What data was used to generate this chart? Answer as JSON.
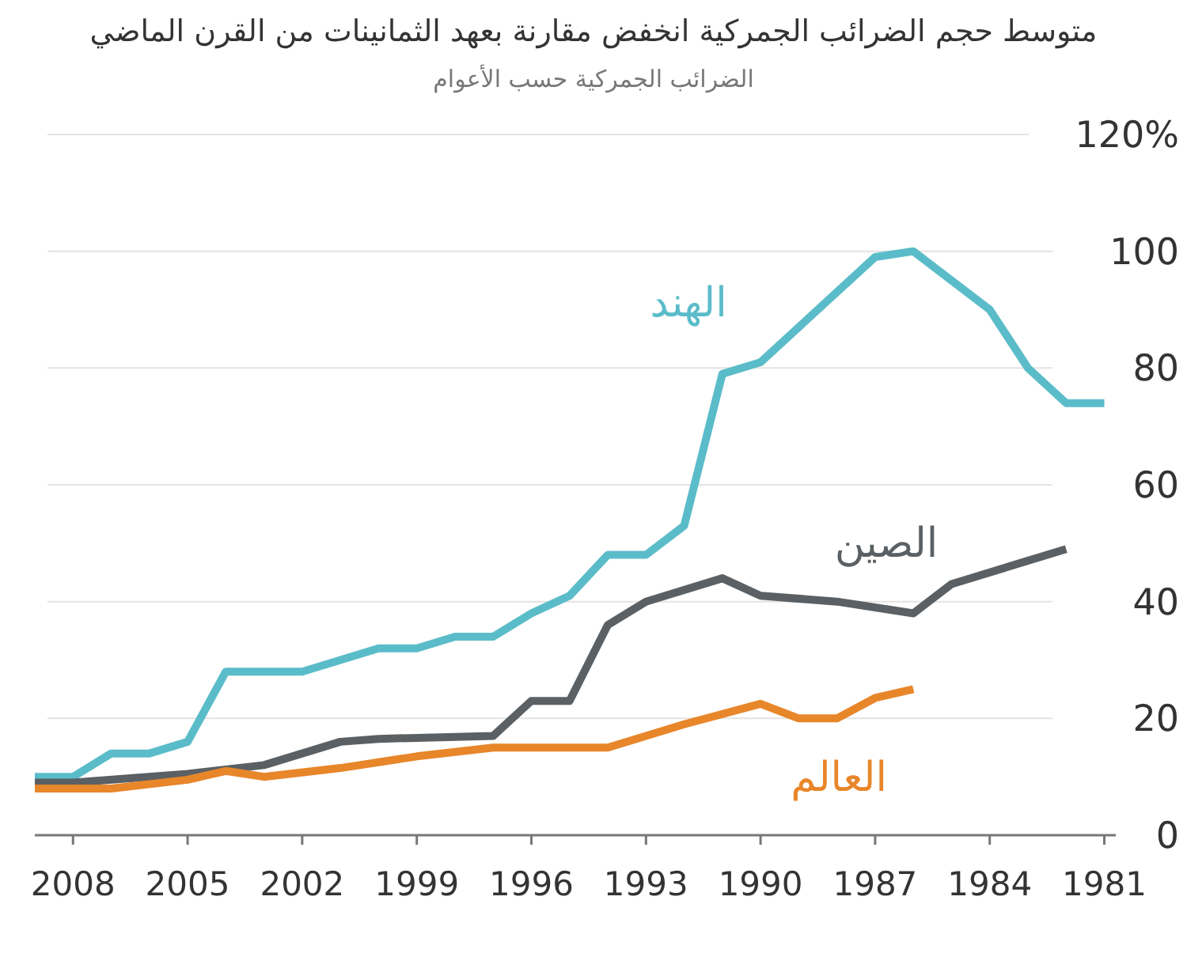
{
  "chart_data": {
    "type": "line",
    "title": "متوسط حجم الضرائب الجمركية انخفض مقارنة بعهد الثمانينات من القرن الماضي",
    "subtitle": "الضرائب الجمركية حسب الأعوام",
    "series": [
      {
        "name": "الهند",
        "color": "#5bbcc9",
        "x": [
          2009,
          2008,
          2007,
          2006,
          2005,
          2004,
          2002,
          2000,
          1999,
          1998,
          1997,
          1996,
          1995,
          1994,
          1993,
          1992,
          1991,
          1990,
          1987,
          1986,
          1984,
          1983,
          1982,
          1981
        ],
        "values": [
          10,
          10,
          14,
          14,
          16,
          28,
          28,
          32,
          32,
          34,
          34,
          38,
          41,
          48,
          48,
          53,
          79,
          81,
          99,
          100,
          90,
          80,
          74,
          74
        ]
      },
      {
        "name": "الصين",
        "color": "#5a6064",
        "x": [
          2009,
          2008,
          2005,
          2003,
          2001,
          2000,
          1997,
          1996,
          1995,
          1994,
          1993,
          1991,
          1990,
          1988,
          1986,
          1985,
          1982
        ],
        "values": [
          9,
          9,
          10.5,
          12,
          16,
          16.5,
          17,
          23,
          23,
          36,
          40,
          44,
          41,
          40,
          38,
          43,
          49
        ]
      },
      {
        "name": "العالم",
        "color": "#e8862a",
        "x": [
          2009,
          2007,
          2005,
          2004,
          2003,
          2001,
          1999,
          1997,
          1994,
          1993,
          1992,
          1990,
          1989,
          1988,
          1987,
          1986
        ],
        "values": [
          8,
          8,
          9.5,
          11,
          10,
          11.5,
          13.5,
          15,
          15,
          17,
          19,
          22.5,
          20,
          20,
          23.5,
          25
        ]
      }
    ],
    "xlim": [
      2009,
      1980.7
    ],
    "xticks": [
      2008,
      2005,
      2002,
      1999,
      1996,
      1993,
      1990,
      1987,
      1984,
      1981
    ],
    "ylim": [
      0,
      120
    ],
    "yticks": [
      0,
      20,
      40,
      60,
      80,
      100,
      {
        "value": 120,
        "label": "120%"
      }
    ],
    "grid": "y",
    "legend": false
  }
}
